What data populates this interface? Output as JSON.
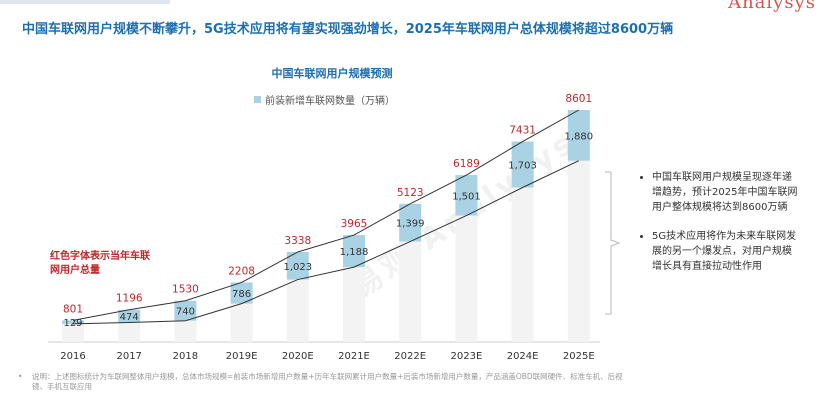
{
  "brand": "Analysys",
  "headline": "中国车联网用户规模不断攀升，5G技术应用将有望实现强劲增长，2025年车联网用户总体规模将超过8600万辆",
  "chart_data": {
    "type": "bar",
    "title": "中国车联网用户规模预测",
    "legend": [
      "前装新增车联网数量（万辆）"
    ],
    "categories": [
      "2016",
      "2017",
      "2018",
      "2019E",
      "2020E",
      "2021E",
      "2022E",
      "2023E",
      "2024E",
      "2025E"
    ],
    "series": [
      {
        "name": "前装新增车联网数量（万辆）",
        "values": [
          129,
          474,
          740,
          786,
          1023,
          1188,
          1399,
          1501,
          1703,
          1880
        ]
      }
    ],
    "totals": [
      801,
      1196,
      1530,
      2208,
      3338,
      3965,
      5123,
      6189,
      7431,
      8601
    ],
    "ylim": [
      0,
      8601
    ],
    "xlabel": "",
    "ylabel": "",
    "colors": {
      "new_segment": "#a9d3e4",
      "base_segment": "#f3f3f3",
      "total_label": "#c0282d",
      "line": "#333333"
    }
  },
  "red_note": "红色字体表示当年车联网用户总量",
  "bullets": [
    "中国车联网用户规模呈现逐年递增趋势，预计2025年中国车联网用户整体规模将达到8600万辆",
    "5G技术应用将作为未来车联网发展的另一个爆发点，对用户规模增长具有直接拉动性作用"
  ],
  "footnote": {
    "bullet": "•",
    "text": "说明：上述图标统计为车联网整体用户规模，总体市场规模=前装市场新增用户数量+历年车联网累计用户数量+后装市场新增用户数量，产品涵盖OBD联网硬件、标准车机、后视镜、手机互联应用"
  },
  "watermark": "易观 Analysys"
}
